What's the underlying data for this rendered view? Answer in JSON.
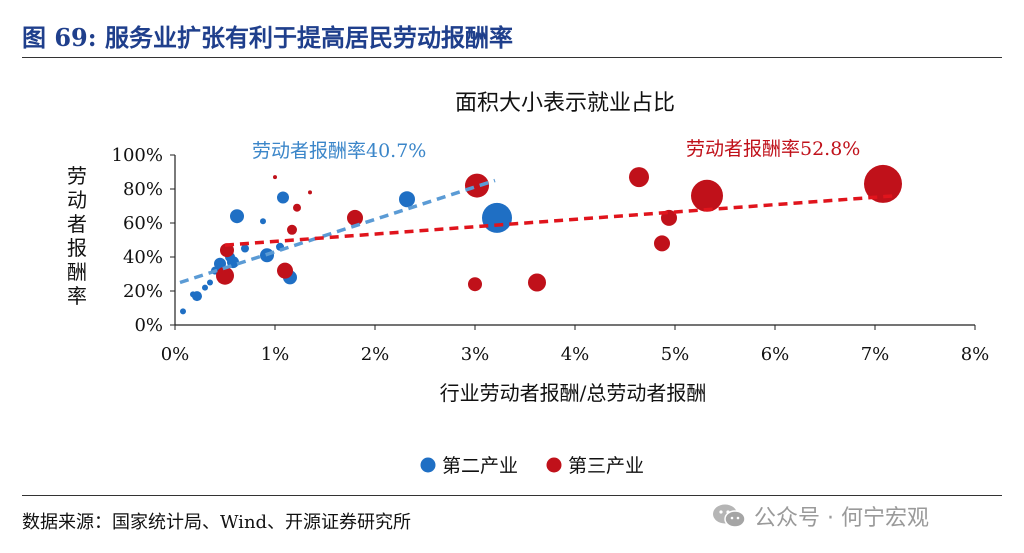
{
  "header": {
    "title": "图 69:  服务业扩张有利于提高居民劳动报酬率"
  },
  "footer": {
    "source": "数据来源：国家统计局、Wind、开源证券研究所"
  },
  "watermark": {
    "text": "公众号 · 何宁宏观",
    "icon": "wechat-icon"
  },
  "colors": {
    "secondary": "#1f6fc4",
    "tertiary": "#c0111a",
    "title": "#1f3f8c"
  },
  "chart_data": {
    "type": "scatter",
    "title": "面积大小表示就业占比",
    "xlabel": "行业劳动者报酬/总劳动者报酬",
    "ylabel": "劳动者报酬率",
    "xlim": [
      0,
      8
    ],
    "ylim": [
      0,
      100
    ],
    "xticks": [
      "0%",
      "1%",
      "2%",
      "3%",
      "4%",
      "5%",
      "6%",
      "7%",
      "8%"
    ],
    "yticks": [
      "0%",
      "20%",
      "40%",
      "60%",
      "80%",
      "100%"
    ],
    "legend_position": "bottom",
    "series": [
      {
        "name": "第二产业",
        "color": "#1f6fc4",
        "trendline_label": "劳动者报酬率40.7%",
        "trendline": [
          [
            0.05,
            25
          ],
          [
            3.2,
            85
          ]
        ],
        "points": [
          {
            "x": 0.08,
            "y": 8,
            "size": 3
          },
          {
            "x": 0.18,
            "y": 18,
            "size": 3
          },
          {
            "x": 0.22,
            "y": 17,
            "size": 5
          },
          {
            "x": 0.3,
            "y": 22,
            "size": 3
          },
          {
            "x": 0.35,
            "y": 25,
            "size": 3
          },
          {
            "x": 0.4,
            "y": 32,
            "size": 4
          },
          {
            "x": 0.45,
            "y": 36,
            "size": 6
          },
          {
            "x": 0.5,
            "y": 30,
            "size": 4
          },
          {
            "x": 0.55,
            "y": 40,
            "size": 5
          },
          {
            "x": 0.58,
            "y": 37,
            "size": 6
          },
          {
            "x": 0.62,
            "y": 64,
            "size": 7
          },
          {
            "x": 0.7,
            "y": 45,
            "size": 4
          },
          {
            "x": 0.88,
            "y": 61,
            "size": 3
          },
          {
            "x": 0.92,
            "y": 41,
            "size": 7
          },
          {
            "x": 1.05,
            "y": 46,
            "size": 4
          },
          {
            "x": 1.08,
            "y": 75,
            "size": 6
          },
          {
            "x": 1.15,
            "y": 28,
            "size": 7
          },
          {
            "x": 2.32,
            "y": 74,
            "size": 8
          },
          {
            "x": 3.22,
            "y": 63,
            "size": 15
          }
        ]
      },
      {
        "name": "第三产业",
        "color": "#c0111a",
        "trendline_label": "劳动者报酬率52.8%",
        "trendline": [
          [
            0.5,
            47
          ],
          [
            7.2,
            76
          ]
        ],
        "points": [
          {
            "x": 0.5,
            "y": 29,
            "size": 9
          },
          {
            "x": 0.52,
            "y": 44,
            "size": 7
          },
          {
            "x": 1.0,
            "y": 87,
            "size": 2
          },
          {
            "x": 1.1,
            "y": 32,
            "size": 8
          },
          {
            "x": 1.17,
            "y": 56,
            "size": 5
          },
          {
            "x": 1.22,
            "y": 69,
            "size": 4
          },
          {
            "x": 1.35,
            "y": 78,
            "size": 2
          },
          {
            "x": 1.8,
            "y": 63,
            "size": 8
          },
          {
            "x": 3.02,
            "y": 82,
            "size": 12
          },
          {
            "x": 3.0,
            "y": 24,
            "size": 7
          },
          {
            "x": 3.62,
            "y": 25,
            "size": 9
          },
          {
            "x": 4.64,
            "y": 87,
            "size": 10
          },
          {
            "x": 4.87,
            "y": 48,
            "size": 8
          },
          {
            "x": 4.94,
            "y": 63,
            "size": 8
          },
          {
            "x": 5.32,
            "y": 76,
            "size": 16
          },
          {
            "x": 7.08,
            "y": 83,
            "size": 19
          }
        ]
      }
    ]
  }
}
